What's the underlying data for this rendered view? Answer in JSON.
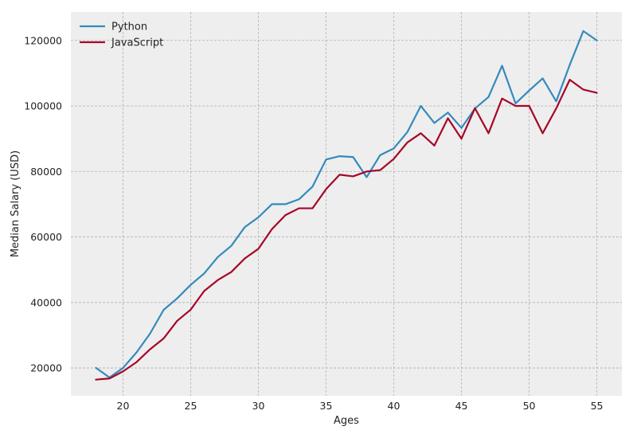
{
  "chart_data": {
    "type": "line",
    "title": "",
    "xlabel": "Ages",
    "ylabel": "Median Salary (USD)",
    "xlim": [
      16.15,
      56.85
    ],
    "ylim": [
      11500,
      128700
    ],
    "xticks": [
      20,
      25,
      30,
      35,
      40,
      45,
      50,
      55
    ],
    "yticks": [
      20000,
      40000,
      60000,
      80000,
      100000,
      120000
    ],
    "grid": true,
    "legend_position": "top-left",
    "x": [
      18,
      19,
      20,
      21,
      22,
      23,
      24,
      25,
      26,
      27,
      28,
      29,
      30,
      31,
      32,
      33,
      34,
      35,
      36,
      37,
      38,
      39,
      40,
      41,
      42,
      43,
      44,
      45,
      46,
      47,
      48,
      49,
      50,
      51,
      52,
      53,
      54,
      55
    ],
    "series": [
      {
        "name": "Python",
        "color": "#348abd",
        "values": [
          20046,
          17100,
          20000,
          24744,
          30500,
          37732,
          41247,
          45372,
          48876,
          53850,
          57287,
          63016,
          65998,
          70003,
          70000,
          71496,
          75370,
          83640,
          84666,
          84392,
          78254,
          85000,
          87038,
          91991,
          100000,
          94796,
          97962,
          93302,
          99240,
          102736,
          112285,
          100771,
          104708,
          108423,
          101407,
          112542,
          122870,
          120000
        ]
      },
      {
        "name": "JavaScript",
        "color": "#a60628",
        "values": [
          16446,
          16791,
          18942,
          21780,
          25704,
          29000,
          34372,
          37810,
          43515,
          46823,
          49293,
          53437,
          56373,
          62375,
          66674,
          68745,
          68746,
          74583,
          79000,
          78508,
          79996,
          80403,
          83820,
          88833,
          91660,
          87892,
          96243,
          90000,
          99313,
          91660,
          102264,
          100000,
          100000,
          91660,
          99240,
          108000,
          105000,
          104000
        ]
      }
    ]
  }
}
